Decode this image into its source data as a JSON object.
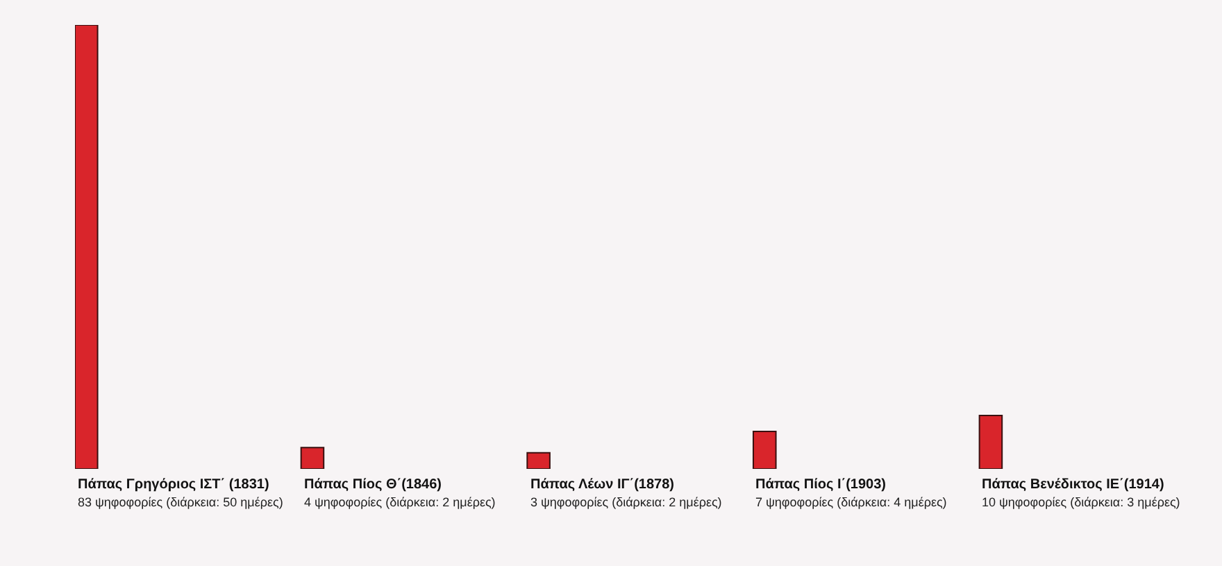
{
  "chart_data": {
    "type": "bar",
    "categories": [
      "Πάπας Γρηγόριος ΙΣΤ΄ (1831)",
      "Πάπας Πίος Θ΄(1846)",
      "Πάπας Λέων ΙΓ΄(1878)",
      "Πάπας Πίος Ι΄(1903)",
      "Πάπας Βενέδικτος ΙΕ΄(1914)"
    ],
    "values": [
      83,
      4,
      3,
      7,
      10
    ],
    "value_labels": [
      "83 ψηφοφορίες (διάρκεια: 50 ημέρες)",
      "4 ψηφοφορίες (διάρκεια: 2 ημέρες)",
      "3 ψηφοφορίες (διάρκεια: 2 ημέρες)",
      "7 ψηφοφορίες (διάρκεια: 4 ημέρες)",
      "10 ψηφοφορίες (διάρκεια: 3 ημέρες)"
    ],
    "color": "#d9252b",
    "ylim": [
      0,
      83
    ],
    "grid": false,
    "legend": false
  }
}
